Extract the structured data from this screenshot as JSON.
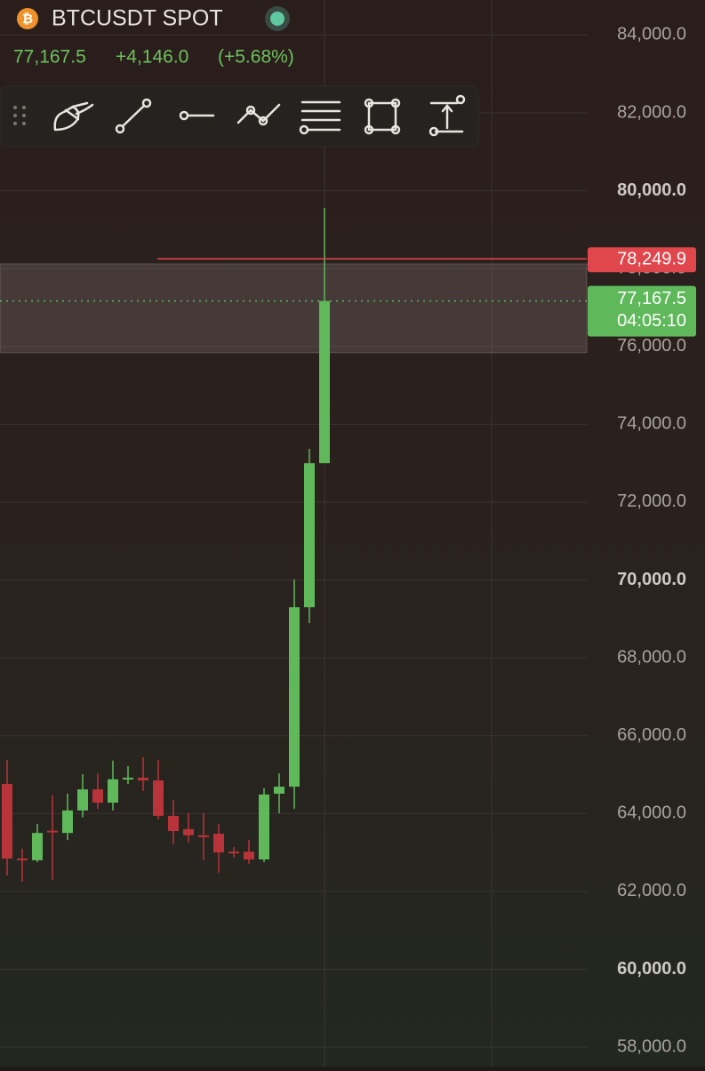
{
  "header": {
    "symbol": "BTCUSDT SPOT",
    "price": "77,167.5",
    "change": "+4,146.0",
    "change_pct": "(+5.68%)"
  },
  "chart_data": {
    "type": "candlestick",
    "open": [
      64762,
      62844,
      62800,
      63560,
      63500,
      64080,
      64620,
      64280,
      64900,
      64920,
      64850,
      63940,
      63600,
      63440,
      63480,
      63020,
      63020,
      62820,
      64510,
      64690,
      69300,
      73000
    ],
    "high": [
      65378,
      63100,
      63730,
      64470,
      64510,
      65010,
      65030,
      65360,
      65220,
      65450,
      65380,
      64350,
      64010,
      64010,
      63730,
      63140,
      63320,
      64650,
      65030,
      70010,
      73370,
      79560
    ],
    "low": [
      62409,
      62250,
      62750,
      62300,
      63320,
      63900,
      64120,
      64080,
      64760,
      64580,
      63850,
      63210,
      63260,
      62800,
      62480,
      62870,
      62710,
      62750,
      64010,
      64120,
      68890,
      73000
    ],
    "close": [
      62844,
      62800,
      63500,
      63520,
      64080,
      64620,
      64280,
      64880,
      64920,
      64850,
      63940,
      63550,
      63440,
      63420,
      63000,
      62990,
      62820,
      64490,
      64690,
      69300,
      73000,
      77167.5
    ],
    "up_color": "#5fb85a",
    "down_color": "#b8333a",
    "ylim": [
      57500,
      84900
    ],
    "yticks": [
      {
        "value": 58000,
        "label": "58,000.0"
      },
      {
        "value": 60000,
        "label": "60,000.0"
      },
      {
        "value": 62000,
        "label": "62,000.0"
      },
      {
        "value": 64000,
        "label": "64,000.0"
      },
      {
        "value": 66000,
        "label": "66,000.0"
      },
      {
        "value": 68000,
        "label": "68,000.0"
      },
      {
        "value": 70000,
        "label": "70,000.0"
      },
      {
        "value": 72000,
        "label": "72,000.0"
      },
      {
        "value": 74000,
        "label": "74,000.0"
      },
      {
        "value": 76000,
        "label": "76,000.0"
      },
      {
        "value": 78000,
        "label": "78,000.0"
      },
      {
        "value": 80000,
        "label": "80,000.0"
      },
      {
        "value": 82000,
        "label": "82,000.0"
      },
      {
        "value": 84000,
        "label": "84,000.0"
      }
    ],
    "grid": true,
    "zone": [
      75840,
      78120
    ],
    "price_lines": [
      {
        "value": 78249.9,
        "label": "78,249.9",
        "color": "#e0474c"
      },
      {
        "value": 77167.5,
        "label": "77,167.5",
        "countdown": "04:05:10",
        "color": "#5fb85a"
      }
    ]
  }
}
